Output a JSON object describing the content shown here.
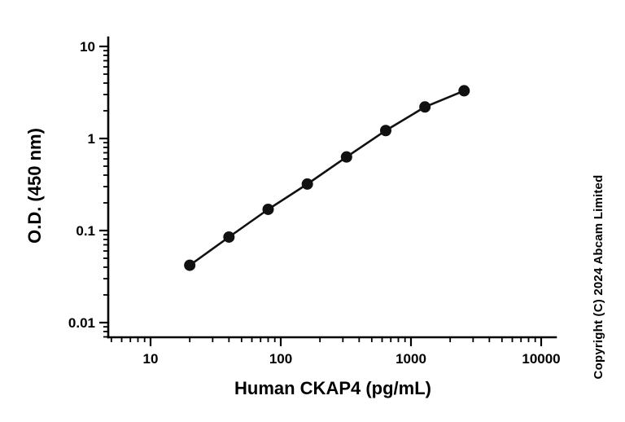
{
  "figure": {
    "copyright": "Copyright (C) 2024 Abcam Limited"
  },
  "chart_data": {
    "type": "line",
    "title": "",
    "xlabel": "Human CKAP4 (pg/mL)",
    "ylabel": "O.D. (450 nm)",
    "xscale": "log",
    "yscale": "log",
    "xlim": [
      10,
      10000
    ],
    "ylim": [
      0.01,
      10
    ],
    "x": [
      20,
      40,
      80,
      160,
      320,
      640,
      1280,
      2560
    ],
    "y": [
      0.042,
      0.085,
      0.17,
      0.32,
      0.63,
      1.22,
      2.2,
      3.3
    ],
    "x_ticks": [
      10,
      100,
      1000,
      10000
    ],
    "x_tick_labels": [
      "10",
      "100",
      "1000",
      "10000"
    ],
    "y_ticks": [
      0.01,
      0.1,
      1,
      10
    ],
    "y_tick_labels": [
      "0.01",
      "0.1",
      "1",
      "10"
    ],
    "marker": "circle",
    "marker_color": "#111111",
    "line_color": "#111111",
    "axis_color": "#000000",
    "grid": false,
    "legend": false
  }
}
